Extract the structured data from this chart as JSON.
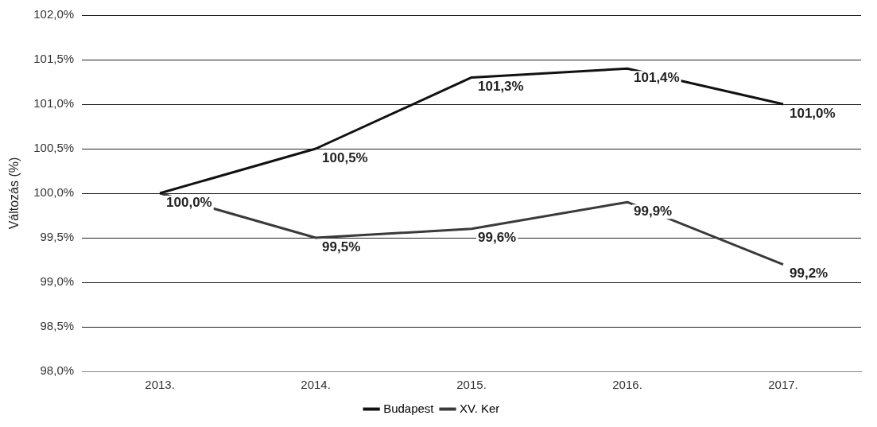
{
  "chart_data": {
    "type": "line",
    "ylabel": "Változás (%)",
    "categories": [
      "2013.",
      "2014.",
      "2015.",
      "2016.",
      "2017."
    ],
    "series": [
      {
        "name": "Budapest",
        "color": "#111111",
        "values": [
          100.0,
          100.5,
          101.3,
          101.4,
          101.0
        ],
        "value_labels": [
          "100,0%",
          "100,5%",
          "101,3%",
          "101,4%",
          "101,0%"
        ]
      },
      {
        "name": "XV. Ker",
        "color": "#3a3a3a",
        "values": [
          100.0,
          99.5,
          99.6,
          99.9,
          99.2
        ],
        "value_labels": [
          null,
          "99,5%",
          "99,6%",
          "99,9%",
          "99,2%"
        ]
      }
    ],
    "ylim": [
      98,
      102
    ],
    "yticks": [
      {
        "value": 98,
        "label": "98,0%"
      },
      {
        "value": 98.5,
        "label": "98,5%"
      },
      {
        "value": 99,
        "label": "99,0%"
      },
      {
        "value": 99.5,
        "label": "99,5%"
      },
      {
        "value": 100,
        "label": "100,0%"
      },
      {
        "value": 100.5,
        "label": "100,5%"
      },
      {
        "value": 101,
        "label": "101,0%"
      },
      {
        "value": 101.5,
        "label": "101,5%"
      },
      {
        "value": 102,
        "label": "102,0%"
      }
    ],
    "grid": "y",
    "legend": "bottom",
    "marker": "none",
    "line_style": "solid"
  }
}
